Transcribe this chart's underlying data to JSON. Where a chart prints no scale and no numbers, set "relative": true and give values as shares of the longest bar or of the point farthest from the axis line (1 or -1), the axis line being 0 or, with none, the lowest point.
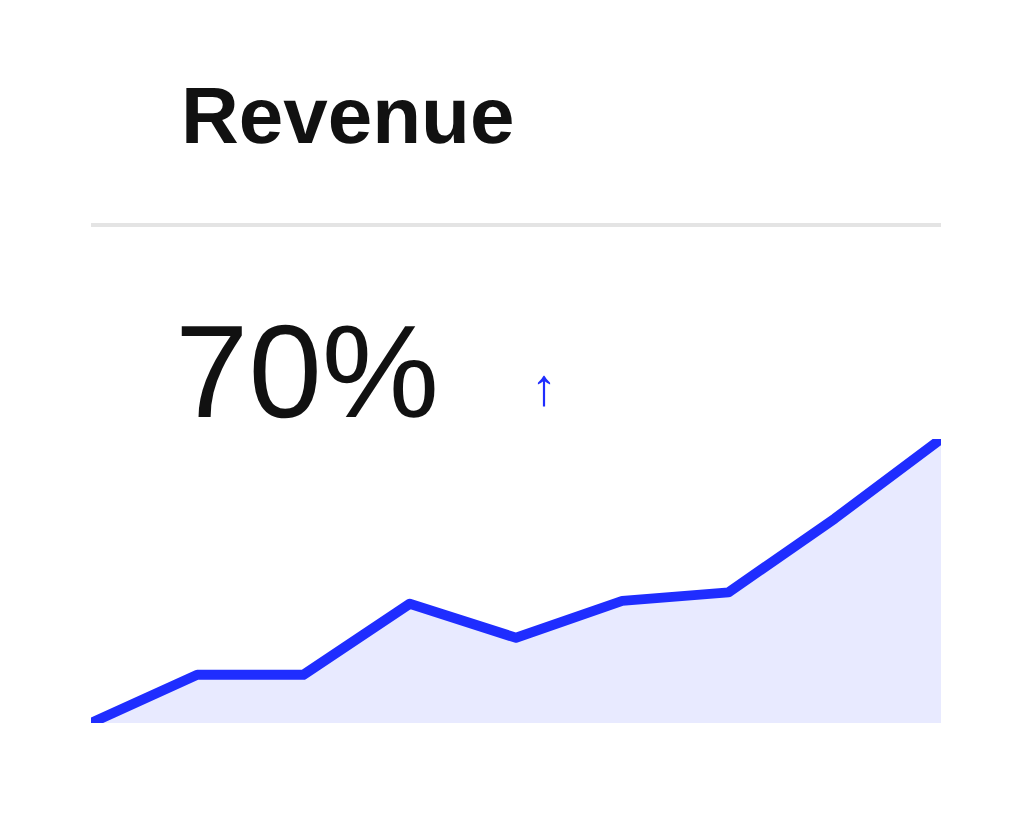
{
  "chart_data": {
    "type": "area",
    "title": "Revenue",
    "annotations": [
      "70%",
      "↑"
    ],
    "relative": true,
    "categories": [
      null,
      null,
      null,
      null,
      null,
      null,
      null,
      null,
      null
    ],
    "series": [
      {
        "color": "#1f2dff",
        "values": [
          0,
          0.17,
          0.17,
          0.42,
          0.3,
          0.43,
          0.46,
          0.72,
          1
        ]
      }
    ]
  }
}
